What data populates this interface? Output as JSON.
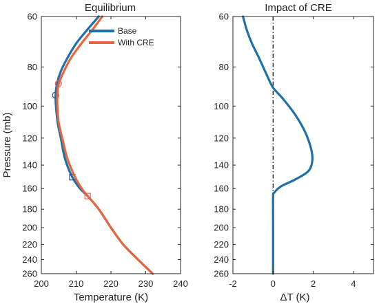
{
  "chart_data": [
    {
      "type": "line",
      "title": "Equilibrium",
      "xlabel": "Temperature (K)",
      "ylabel": "Pressure (mb)",
      "xlim": [
        200,
        240
      ],
      "ylim": [
        60,
        260
      ],
      "y_scale": "log",
      "y_inverted": true,
      "xticks": [
        "200",
        "210",
        "220",
        "230",
        "240"
      ],
      "yticks": [
        "60",
        "80",
        "100",
        "120",
        "140",
        "160",
        "180",
        "200",
        "220",
        "240",
        "260"
      ],
      "legend_position": "top-right",
      "series": [
        {
          "name": "Base",
          "color": "#1f6fa8",
          "points": [
            [
              216.5,
              60
            ],
            [
              213.0,
              65
            ],
            [
              210.0,
              70
            ],
            [
              207.5,
              76
            ],
            [
              205.6,
              82
            ],
            [
              204.5,
              88
            ],
            [
              204.1,
              94
            ],
            [
              204.2,
              100
            ],
            [
              204.7,
              110
            ],
            [
              205.6,
              120
            ],
            [
              206.8,
              135
            ],
            [
              208.9,
              150
            ],
            [
              211.1,
              160
            ],
            [
              213.3,
              167
            ],
            [
              216.5,
              180
            ],
            [
              220.0,
              200
            ],
            [
              223.5,
              220
            ],
            [
              227.8,
              240
            ],
            [
              232.0,
              260
            ]
          ],
          "markers": [
            {
              "shape": "circle",
              "x": 204.1,
              "y": 94
            },
            {
              "shape": "square",
              "x": 208.9,
              "y": 150
            }
          ]
        },
        {
          "name": "With CRE",
          "color": "#e8663d",
          "points": [
            [
              217.5,
              60
            ],
            [
              214.5,
              65
            ],
            [
              211.5,
              70
            ],
            [
              208.5,
              76
            ],
            [
              206.5,
              82
            ],
            [
              205.0,
              88
            ],
            [
              204.6,
              94
            ],
            [
              204.6,
              100
            ],
            [
              205.0,
              110
            ],
            [
              206.0,
              120
            ],
            [
              207.5,
              135
            ],
            [
              209.7,
              150
            ],
            [
              211.6,
              160
            ],
            [
              213.3,
              167
            ],
            [
              216.5,
              180
            ],
            [
              220.0,
              200
            ],
            [
              223.5,
              220
            ],
            [
              227.8,
              240
            ],
            [
              232.0,
              260
            ]
          ],
          "markers": [
            {
              "shape": "circle",
              "x": 204.9,
              "y": 88
            },
            {
              "shape": "square",
              "x": 213.3,
              "y": 167
            }
          ]
        }
      ]
    },
    {
      "type": "line",
      "title": "Impact of CRE",
      "xlabel": "ΔT (K)",
      "xlim": [
        -2,
        5
      ],
      "ylim": [
        60,
        260
      ],
      "y_scale": "log",
      "y_inverted": true,
      "xticks": [
        "-2",
        "0",
        "2",
        "4"
      ],
      "yticks": [
        "60",
        "80",
        "100",
        "120",
        "140",
        "160",
        "180",
        "200",
        "220",
        "240",
        "260"
      ],
      "zero_line": {
        "x": 0,
        "style": "dash-dot",
        "color": "#000000"
      },
      "series": [
        {
          "color": "#1f6fa8",
          "points": [
            [
              -1.5,
              60
            ],
            [
              -1.3,
              65
            ],
            [
              -1.05,
              70
            ],
            [
              -0.7,
              76
            ],
            [
              -0.3,
              84
            ],
            [
              0.0,
              90
            ],
            [
              0.5,
              96
            ],
            [
              1.1,
              105
            ],
            [
              1.6,
              116
            ],
            [
              1.9,
              128
            ],
            [
              1.95,
              137
            ],
            [
              1.75,
              145
            ],
            [
              1.1,
              152
            ],
            [
              0.4,
              158
            ],
            [
              0.05,
              164
            ],
            [
              0.0,
              168
            ],
            [
              0.0,
              200
            ],
            [
              0.0,
              260
            ]
          ]
        }
      ]
    }
  ]
}
